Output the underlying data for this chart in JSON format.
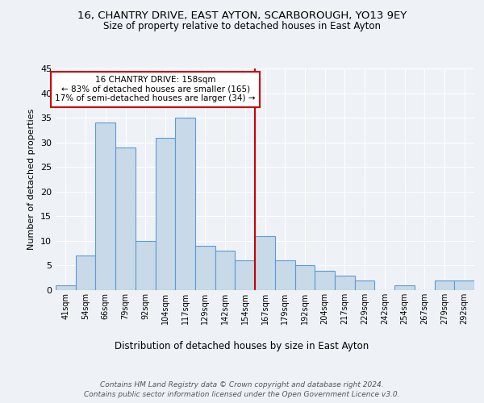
{
  "title1": "16, CHANTRY DRIVE, EAST AYTON, SCARBOROUGH, YO13 9EY",
  "title2": "Size of property relative to detached houses in East Ayton",
  "xlabel": "Distribution of detached houses by size in East Ayton",
  "ylabel": "Number of detached properties",
  "bar_labels": [
    "41sqm",
    "54sqm",
    "66sqm",
    "79sqm",
    "92sqm",
    "104sqm",
    "117sqm",
    "129sqm",
    "142sqm",
    "154sqm",
    "167sqm",
    "179sqm",
    "192sqm",
    "204sqm",
    "217sqm",
    "229sqm",
    "242sqm",
    "254sqm",
    "267sqm",
    "279sqm",
    "292sqm"
  ],
  "bar_values": [
    1,
    7,
    34,
    29,
    10,
    31,
    35,
    9,
    8,
    6,
    11,
    6,
    5,
    4,
    3,
    2,
    0,
    1,
    0,
    2,
    2
  ],
  "bar_color": "#c8d9e8",
  "bar_edge_color": "#5b9bd5",
  "vline_x": 9.5,
  "vline_color": "#cc0000",
  "annotation_text": "16 CHANTRY DRIVE: 158sqm\n← 83% of detached houses are smaller (165)\n17% of semi-detached houses are larger (34) →",
  "annotation_box_color": "#cc0000",
  "ylim": [
    0,
    45
  ],
  "yticks": [
    0,
    5,
    10,
    15,
    20,
    25,
    30,
    35,
    40,
    45
  ],
  "footnote1": "Contains HM Land Registry data © Crown copyright and database right 2024.",
  "footnote2": "Contains public sector information licensed under the Open Government Licence v3.0.",
  "bg_color": "#eef2f7",
  "grid_color": "#ffffff"
}
